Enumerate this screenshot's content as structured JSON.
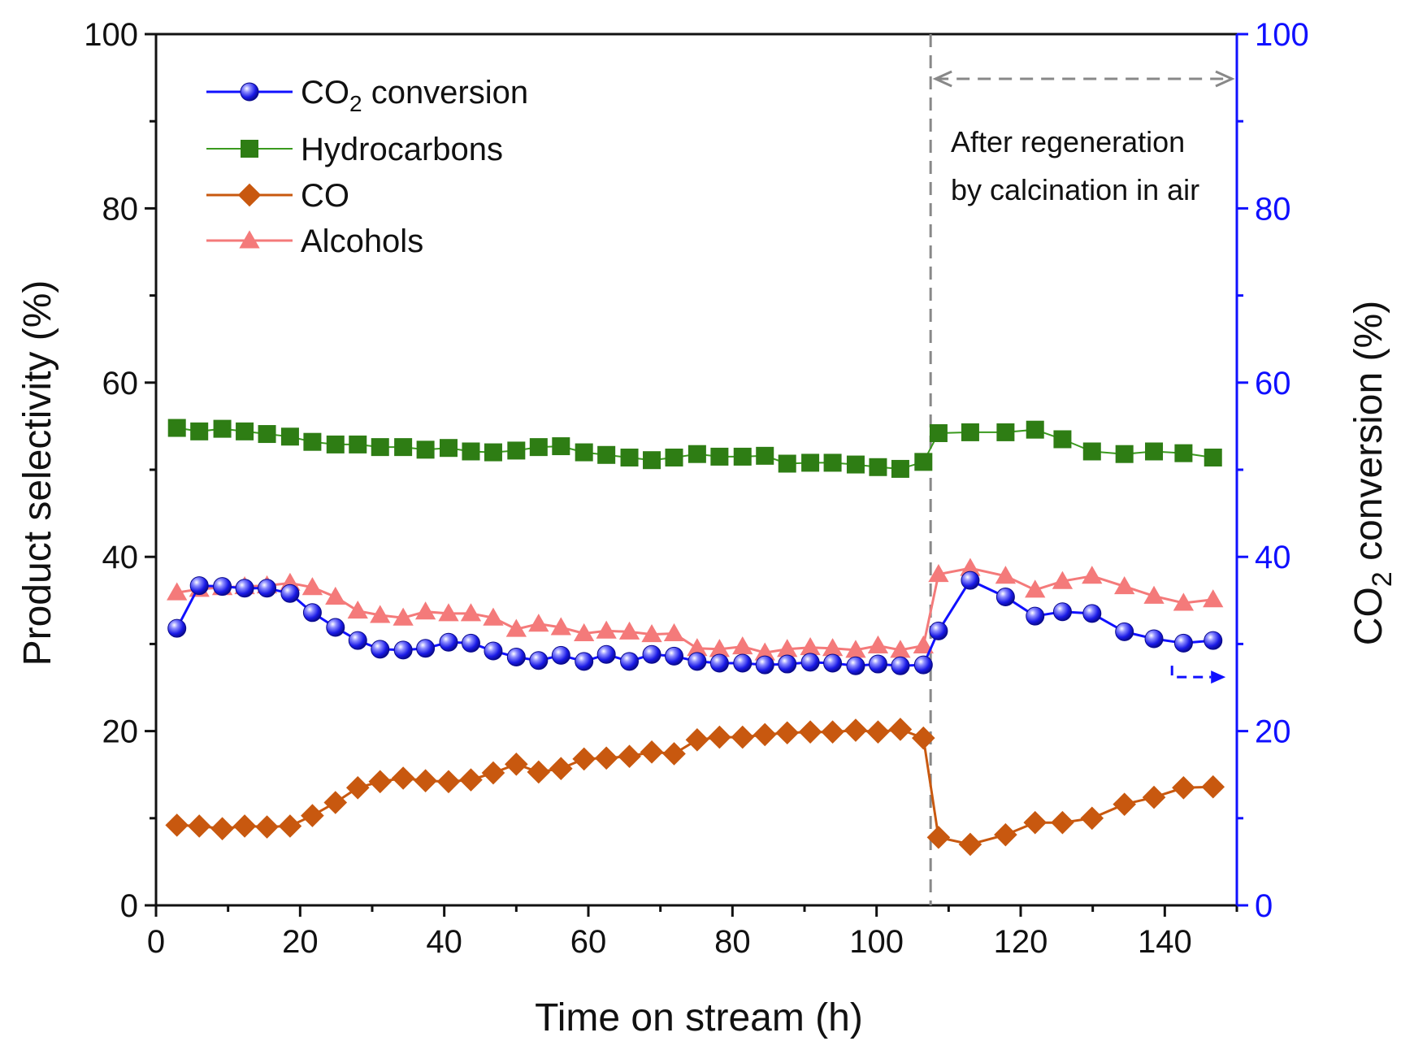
{
  "chart_data": {
    "type": "line",
    "xlabel": "Time on stream (h)",
    "ylabel_left": "Product selectivity (%)",
    "ylabel_right": "CO2 conversion (%)",
    "ylabel_right_parts": {
      "before": "CO",
      "sub": "2",
      "after": " conversion (%)"
    },
    "xlim": [
      0,
      150
    ],
    "ylim_left": [
      0,
      100
    ],
    "ylim_right": [
      0,
      100
    ],
    "x_ticks": [
      0,
      20,
      40,
      60,
      80,
      100,
      120,
      140
    ],
    "y_ticks_left": [
      0,
      20,
      40,
      60,
      80,
      100
    ],
    "y_ticks_right": [
      0,
      20,
      40,
      60,
      80,
      100
    ],
    "colors": {
      "axis": "#111111",
      "right_axis": "#1010ff",
      "divider": "#888888"
    },
    "regeneration_time": 107.5,
    "annotation_lines": [
      "After regeneration",
      "by calcination in air"
    ],
    "legend": [
      {
        "label": "CO2 conversion",
        "before": "CO",
        "sub": "2",
        "after": " conversion",
        "series": "co2"
      },
      {
        "label": "Hydrocarbons",
        "before": "Hydrocarbons",
        "sub": "",
        "after": "",
        "series": "hc"
      },
      {
        "label": "CO",
        "before": "CO",
        "sub": "",
        "after": "",
        "series": "co"
      },
      {
        "label": "Alcohols",
        "before": "Alcohols",
        "sub": "",
        "after": "",
        "series": "alc"
      }
    ],
    "series": [
      {
        "id": "hc",
        "name": "Hydrocarbons",
        "axis": "left",
        "marker": "square",
        "color": "#2e7d14",
        "line_color": "#3a9a1e",
        "x": [
          2.9,
          6.0,
          9.2,
          12.3,
          15.4,
          18.6,
          21.7,
          24.9,
          28.0,
          31.1,
          34.3,
          37.4,
          40.6,
          43.7,
          46.8,
          50.0,
          53.1,
          56.2,
          59.4,
          62.5,
          65.7,
          68.8,
          71.9,
          75.1,
          78.2,
          81.4,
          84.5,
          87.6,
          90.8,
          93.9,
          97.1,
          100.2,
          103.3,
          106.5,
          108.6,
          113.0,
          117.9,
          122.0,
          125.8,
          129.9,
          134.4,
          138.5,
          142.6,
          146.7
        ],
        "values": [
          54.8,
          54.4,
          54.7,
          54.4,
          54.1,
          53.8,
          53.2,
          52.9,
          52.9,
          52.6,
          52.6,
          52.3,
          52.5,
          52.1,
          52.0,
          52.2,
          52.6,
          52.7,
          52.0,
          51.7,
          51.4,
          51.1,
          51.4,
          51.8,
          51.5,
          51.5,
          51.6,
          50.7,
          50.8,
          50.8,
          50.6,
          50.3,
          50.1,
          50.9,
          54.2,
          54.3,
          54.3,
          54.6,
          53.5,
          52.1,
          51.8,
          52.1,
          51.9,
          51.4
        ]
      },
      {
        "id": "alc",
        "name": "Alcohols",
        "axis": "left",
        "marker": "triangle",
        "color": "#f47a7a",
        "line_color": "#f47a7a",
        "x": [
          2.9,
          6.0,
          9.2,
          12.3,
          15.4,
          18.6,
          21.7,
          24.9,
          28.0,
          31.1,
          34.3,
          37.4,
          40.6,
          43.7,
          46.8,
          50.0,
          53.1,
          56.2,
          59.4,
          62.5,
          65.7,
          68.8,
          71.9,
          75.1,
          78.2,
          81.4,
          84.5,
          87.6,
          90.8,
          93.9,
          97.1,
          100.2,
          103.3,
          106.5,
          108.6,
          113.0,
          117.9,
          122.0,
          125.8,
          129.9,
          134.4,
          138.5,
          142.6,
          146.7
        ],
        "values": [
          35.9,
          36.3,
          36.5,
          36.6,
          36.7,
          37.0,
          36.5,
          35.4,
          33.8,
          33.3,
          33.0,
          33.7,
          33.5,
          33.5,
          33.0,
          31.7,
          32.3,
          31.9,
          31.2,
          31.5,
          31.4,
          31.1,
          31.2,
          29.5,
          29.4,
          29.7,
          29.0,
          29.4,
          29.6,
          29.5,
          29.3,
          29.8,
          29.3,
          29.8,
          38.0,
          38.7,
          37.8,
          36.2,
          37.2,
          37.8,
          36.6,
          35.5,
          34.7,
          35.1
        ]
      },
      {
        "id": "co",
        "name": "CO",
        "axis": "left",
        "marker": "diamond",
        "color": "#c8580f",
        "line_color": "#c8580f",
        "x": [
          2.9,
          6.0,
          9.2,
          12.3,
          15.4,
          18.6,
          21.7,
          24.9,
          28.0,
          31.1,
          34.3,
          37.4,
          40.6,
          43.7,
          46.8,
          50.0,
          53.1,
          56.2,
          59.4,
          62.5,
          65.7,
          68.8,
          71.9,
          75.1,
          78.2,
          81.4,
          84.5,
          87.6,
          90.8,
          93.9,
          97.1,
          100.2,
          103.3,
          106.5,
          108.6,
          113.0,
          117.9,
          122.0,
          125.8,
          129.9,
          134.4,
          138.5,
          142.6,
          146.7
        ],
        "values": [
          9.2,
          9.1,
          8.8,
          9.1,
          9.0,
          9.1,
          10.3,
          11.8,
          13.5,
          14.2,
          14.6,
          14.3,
          14.2,
          14.4,
          15.2,
          16.2,
          15.3,
          15.7,
          16.8,
          16.9,
          17.1,
          17.6,
          17.4,
          19.0,
          19.3,
          19.3,
          19.6,
          19.8,
          19.9,
          19.9,
          20.1,
          19.9,
          20.2,
          19.2,
          7.8,
          7.0,
          8.1,
          9.5,
          9.5,
          10.0,
          11.6,
          12.4,
          13.5,
          13.6
        ]
      },
      {
        "id": "co2",
        "name": "CO2 conversion",
        "axis": "right",
        "marker": "sphere",
        "color": "#1a1ae6",
        "line_color": "#1010ff",
        "x": [
          2.9,
          6.0,
          9.2,
          12.3,
          15.4,
          18.6,
          21.7,
          24.9,
          28.0,
          31.1,
          34.3,
          37.4,
          40.6,
          43.7,
          46.8,
          50.0,
          53.1,
          56.2,
          59.4,
          62.5,
          65.7,
          68.8,
          71.9,
          75.1,
          78.2,
          81.4,
          84.5,
          87.6,
          90.8,
          93.9,
          97.1,
          100.2,
          103.3,
          106.5,
          108.6,
          113.0,
          117.9,
          122.0,
          125.8,
          129.9,
          134.4,
          138.5,
          142.6,
          146.7
        ],
        "values": [
          31.8,
          36.7,
          36.6,
          36.4,
          36.4,
          35.8,
          33.6,
          31.9,
          30.4,
          29.4,
          29.3,
          29.5,
          30.2,
          30.1,
          29.2,
          28.5,
          28.1,
          28.7,
          28.0,
          28.8,
          28.0,
          28.8,
          28.6,
          28.0,
          27.8,
          27.8,
          27.6,
          27.7,
          27.9,
          27.8,
          27.5,
          27.7,
          27.5,
          27.6,
          31.5,
          37.3,
          35.4,
          33.2,
          33.7,
          33.5,
          31.4,
          30.6,
          30.1,
          30.4
        ]
      }
    ]
  }
}
